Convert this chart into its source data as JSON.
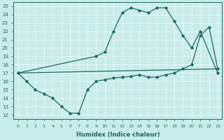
{
  "xlabel": "Humidex (Indice chaleur)",
  "xlim": [
    -0.5,
    23.5
  ],
  "ylim": [
    11.5,
    25.5
  ],
  "xticks": [
    0,
    1,
    2,
    3,
    4,
    5,
    6,
    7,
    8,
    9,
    10,
    11,
    12,
    13,
    14,
    15,
    16,
    17,
    18,
    19,
    20,
    21,
    22,
    23
  ],
  "yticks": [
    12,
    13,
    14,
    15,
    16,
    17,
    18,
    19,
    20,
    21,
    22,
    23,
    24,
    25
  ],
  "bg_color": "#c8ecea",
  "line_color": "#1a6b60",
  "grid_color": "#e8f8f6",
  "series": [
    {
      "x": [
        0,
        9,
        10,
        11,
        12,
        13,
        14,
        15,
        16,
        17,
        18,
        19,
        20,
        21,
        23
      ],
      "y": [
        17,
        19,
        19.5,
        22,
        24.2,
        24.8,
        24.5,
        24.2,
        24.8,
        24.8,
        23.2,
        21.5,
        20,
        22,
        17
      ]
    },
    {
      "x": [
        0,
        23
      ],
      "y": [
        17,
        17.5
      ]
    },
    {
      "x": [
        0,
        1,
        2,
        3,
        4,
        5,
        6,
        7,
        8,
        9,
        10,
        11,
        12,
        13,
        14,
        15,
        16,
        17,
        18,
        19,
        20,
        21,
        22,
        23
      ],
      "y": [
        17,
        16,
        15,
        14.5,
        14,
        13,
        12.2,
        12.2,
        15,
        16,
        16.2,
        16.4,
        16.5,
        16.6,
        16.8,
        16.5,
        16.5,
        16.8,
        17.0,
        17.5,
        18.0,
        21.5,
        22.5,
        17.5
      ]
    }
  ]
}
